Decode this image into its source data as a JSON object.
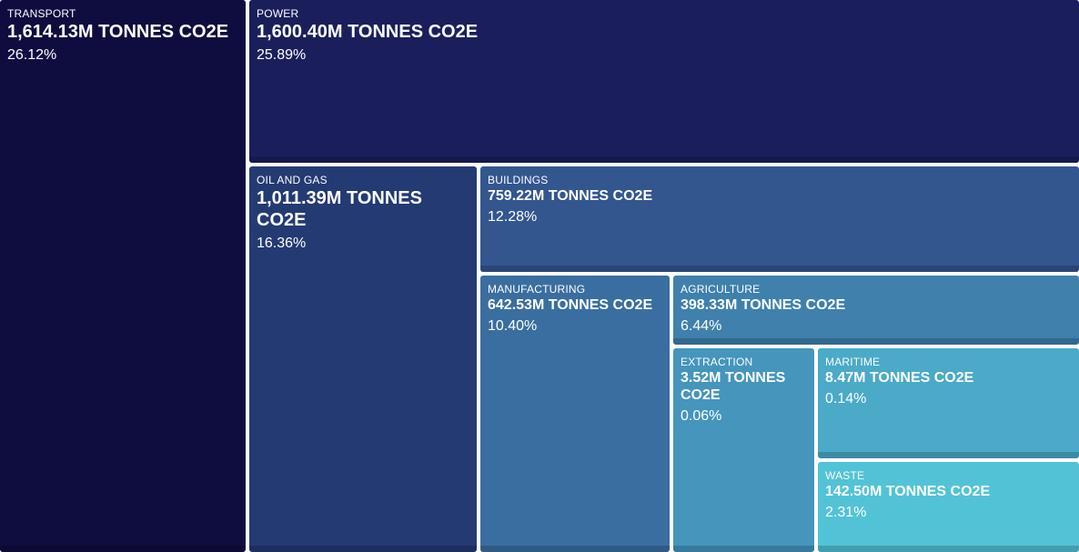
{
  "chart_data": {
    "type": "treemap",
    "unit": "TONNES CO2E",
    "items": [
      {
        "name": "TRANSPORT",
        "value_label": "1,614.13M TONNES CO2E",
        "value": 1614.13,
        "percent_label": "26.12%",
        "percent": 26.12,
        "color": "#0f0c3f"
      },
      {
        "name": "POWER",
        "value_label": "1,600.40M TONNES CO2E",
        "value": 1600.4,
        "percent_label": "25.89%",
        "percent": 25.89,
        "color": "#1a1f5c"
      },
      {
        "name": "OIL AND GAS",
        "value_label": "1,011.39M TONNES CO2E",
        "value": 1011.39,
        "percent_label": "16.36%",
        "percent": 16.36,
        "color": "#243a72"
      },
      {
        "name": "BUILDINGS",
        "value_label": "759.22M TONNES CO2E",
        "value": 759.22,
        "percent_label": "12.28%",
        "percent": 12.28,
        "color": "#33568f"
      },
      {
        "name": "MANUFACTURING",
        "value_label": "642.53M TONNES CO2E",
        "value": 642.53,
        "percent_label": "10.40%",
        "percent": 10.4,
        "color": "#3a6ea0"
      },
      {
        "name": "AGRICULTURE",
        "value_label": "398.33M TONNES CO2E",
        "value": 398.33,
        "percent_label": "6.44%",
        "percent": 6.44,
        "color": "#3f80ad"
      },
      {
        "name": "EXTRACTION",
        "value_label": "3.52M TONNES CO2E",
        "value": 3.52,
        "percent_label": "0.06%",
        "percent": 0.06,
        "color": "#4595bd"
      },
      {
        "name": "MARITIME",
        "value_label": "8.47M TONNES CO2E",
        "value": 8.47,
        "percent_label": "0.14%",
        "percent": 0.14,
        "color": "#4aaac8"
      },
      {
        "name": "WASTE",
        "value_label": "142.50M TONNES CO2E",
        "value": 142.5,
        "percent_label": "2.31%",
        "percent": 2.31,
        "color": "#52c3d6"
      }
    ]
  }
}
